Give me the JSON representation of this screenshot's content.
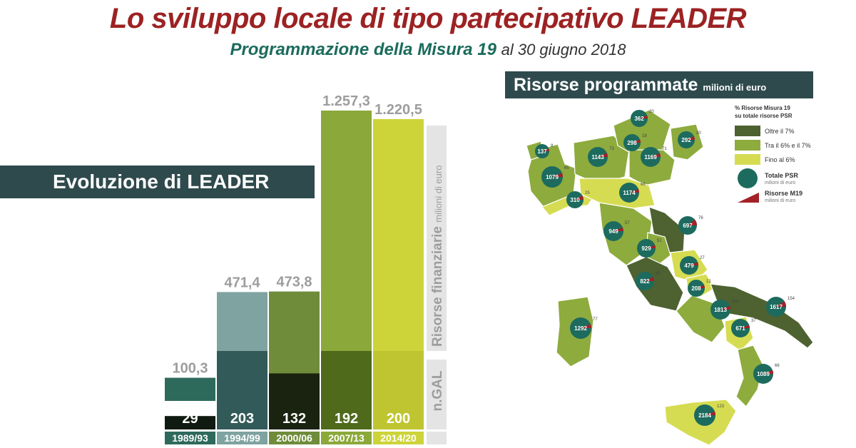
{
  "header": {
    "title": "Lo sviluppo locale di tipo partecipativo LEADER",
    "subtitle_strong": "Programmazione della Misura 19",
    "subtitle_date": "al 30 giugno 2018"
  },
  "left_panel": {
    "banner": "Evoluzione di LEADER"
  },
  "right_panel": {
    "banner": "Risorse programmate",
    "banner_unit": "milioni di euro"
  },
  "chart_data": [
    {
      "type": "bar",
      "categories": [
        "1989/93",
        "1994/99",
        "2000/06",
        "2007/13",
        "2014/20"
      ],
      "series": [
        {
          "name": "Risorse finanziarie",
          "values": [
            100.3,
            471.4,
            473.8,
            1257.3,
            1220.5
          ]
        },
        {
          "name": "n.GAL",
          "values": [
            29,
            203,
            132,
            192,
            200
          ]
        }
      ],
      "resources_labels": [
        "100,3",
        "471,4",
        "473,8",
        "1.257,3",
        "1.220,5"
      ],
      "gal_labels": [
        "29",
        "203",
        "132",
        "192",
        "200"
      ],
      "side_label_resources": "Risorse finanziarie",
      "side_label_unit": "milioni di euro",
      "side_label_gal": "n.GAL",
      "colors": {
        "top": [
          "#2e6a5c",
          "#7fa3a0",
          "#6f8c3a",
          "#8ba83a",
          "#cdd43a"
        ],
        "bottom": [
          "#101a10",
          "#315a58",
          "#1a2210",
          "#4e6a1a",
          "#bfc530"
        ],
        "year_bg": [
          "#2e6a5c",
          "#7fa3a0",
          "#6f8c3a",
          "#8ba83a",
          "#cdd43a"
        ]
      }
    },
    {
      "type": "map",
      "legend_title": "% Risorse Misura 19 su totale risorse PSR",
      "legend_items": [
        {
          "label": "Oltre il 7%",
          "color": "#4d6230"
        },
        {
          "label": "Tra il 6% e il 7%",
          "color": "#8eab3e"
        },
        {
          "label": "Fino al 6%",
          "color": "#d6dc52"
        }
      ],
      "legend_totale": "Totale PSR",
      "legend_totale_unit": "milioni di euro",
      "legend_m19": "Risorse M19",
      "legend_m19_unit": "milioni di euro",
      "regions": [
        {
          "name": "Valle d'Aosta",
          "psr": 137,
          "m19": 8
        },
        {
          "name": "Piemonte",
          "psr": 1079,
          "m19": 65
        },
        {
          "name": "Lombardia",
          "psr": 1143,
          "m19": 73
        },
        {
          "name": "Bolzano",
          "psr": 362,
          "m19": 20
        },
        {
          "name": "Trento",
          "psr": 298,
          "m19": 18
        },
        {
          "name": "Veneto",
          "psr": 1169,
          "m19": 71
        },
        {
          "name": "Friuli Venezia Giulia",
          "psr": 292,
          "m19": 20
        },
        {
          "name": "Liguria",
          "psr": 310,
          "m19": 25
        },
        {
          "name": "Emilia-Romagna",
          "psr": 1174,
          "m19": 66
        },
        {
          "name": "Toscana",
          "psr": 949,
          "m19": 57
        },
        {
          "name": "Umbria",
          "psr": 929,
          "m19": 51
        },
        {
          "name": "Marche",
          "psr": 697,
          "m19": 76
        },
        {
          "name": "Lazio",
          "psr": 822,
          "m19": 60
        },
        {
          "name": "Abruzzo",
          "psr": 479,
          "m19": 27
        },
        {
          "name": "Molise",
          "psr": 208,
          "m19": 12
        },
        {
          "name": "Campania",
          "psr": 1813,
          "m19": 110
        },
        {
          "name": "Puglia",
          "psr": 1617,
          "m19": 154
        },
        {
          "name": "Basilicata",
          "psr": 671,
          "m19": 37
        },
        {
          "name": "Calabria",
          "psr": 1089,
          "m19": 66
        },
        {
          "name": "Sicilia",
          "psr": 2184,
          "m19": 123
        },
        {
          "name": "Sardegna",
          "psr": 1292,
          "m19": 77
        }
      ]
    }
  ]
}
